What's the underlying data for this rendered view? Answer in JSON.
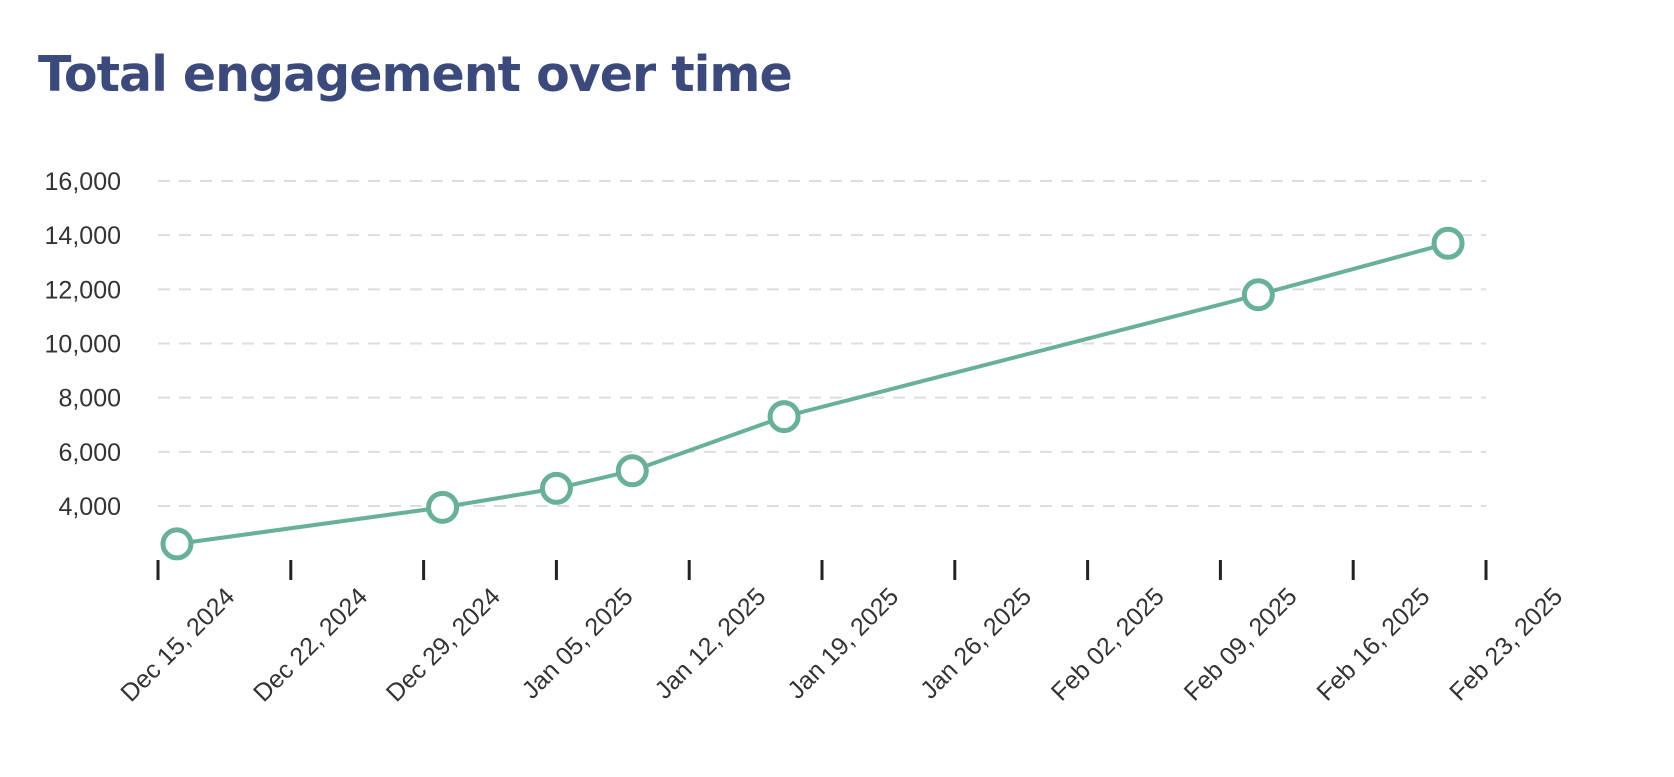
{
  "chart_data": {
    "type": "line",
    "title": "Total engagement over time",
    "xlabel": "",
    "ylabel": "",
    "x_type": "date",
    "xlim": [
      "2024-12-14",
      "2025-02-23"
    ],
    "ylim": [
      2000,
      16000
    ],
    "y_ticks": [
      4000,
      6000,
      8000,
      10000,
      12000,
      14000,
      16000
    ],
    "y_tick_labels": [
      "4,000",
      "6,000",
      "8,000",
      "10,000",
      "12,000",
      "14,000",
      "16,000"
    ],
    "x_ticks": [
      "2024-12-15",
      "2024-12-22",
      "2024-12-29",
      "2025-01-05",
      "2025-01-12",
      "2025-01-19",
      "2025-01-26",
      "2025-02-02",
      "2025-02-09",
      "2025-02-16",
      "2025-02-23"
    ],
    "x_tick_labels": [
      "Dec 15, 2024",
      "Dec 22, 2024",
      "Dec 29, 2024",
      "Jan 05, 2025",
      "Jan 12, 2025",
      "Jan 19, 2025",
      "Jan 26, 2025",
      "Feb 02, 2025",
      "Feb 09, 2025",
      "Feb 16, 2025",
      "Feb 23, 2025"
    ],
    "grid": "horizontal-dashed",
    "legend": "none",
    "series": [
      {
        "x": [
          "2024-12-16",
          "2024-12-30",
          "2025-01-05",
          "2025-01-09",
          "2025-01-17",
          "2025-02-11",
          "2025-02-21"
        ],
        "values": [
          2600,
          3950,
          4650,
          5300,
          7300,
          11800,
          13700
        ]
      }
    ],
    "colors": {
      "line": "#68b09a",
      "grid": "#dddddd",
      "title": "#3b4a7a",
      "axis": "#222222"
    }
  }
}
